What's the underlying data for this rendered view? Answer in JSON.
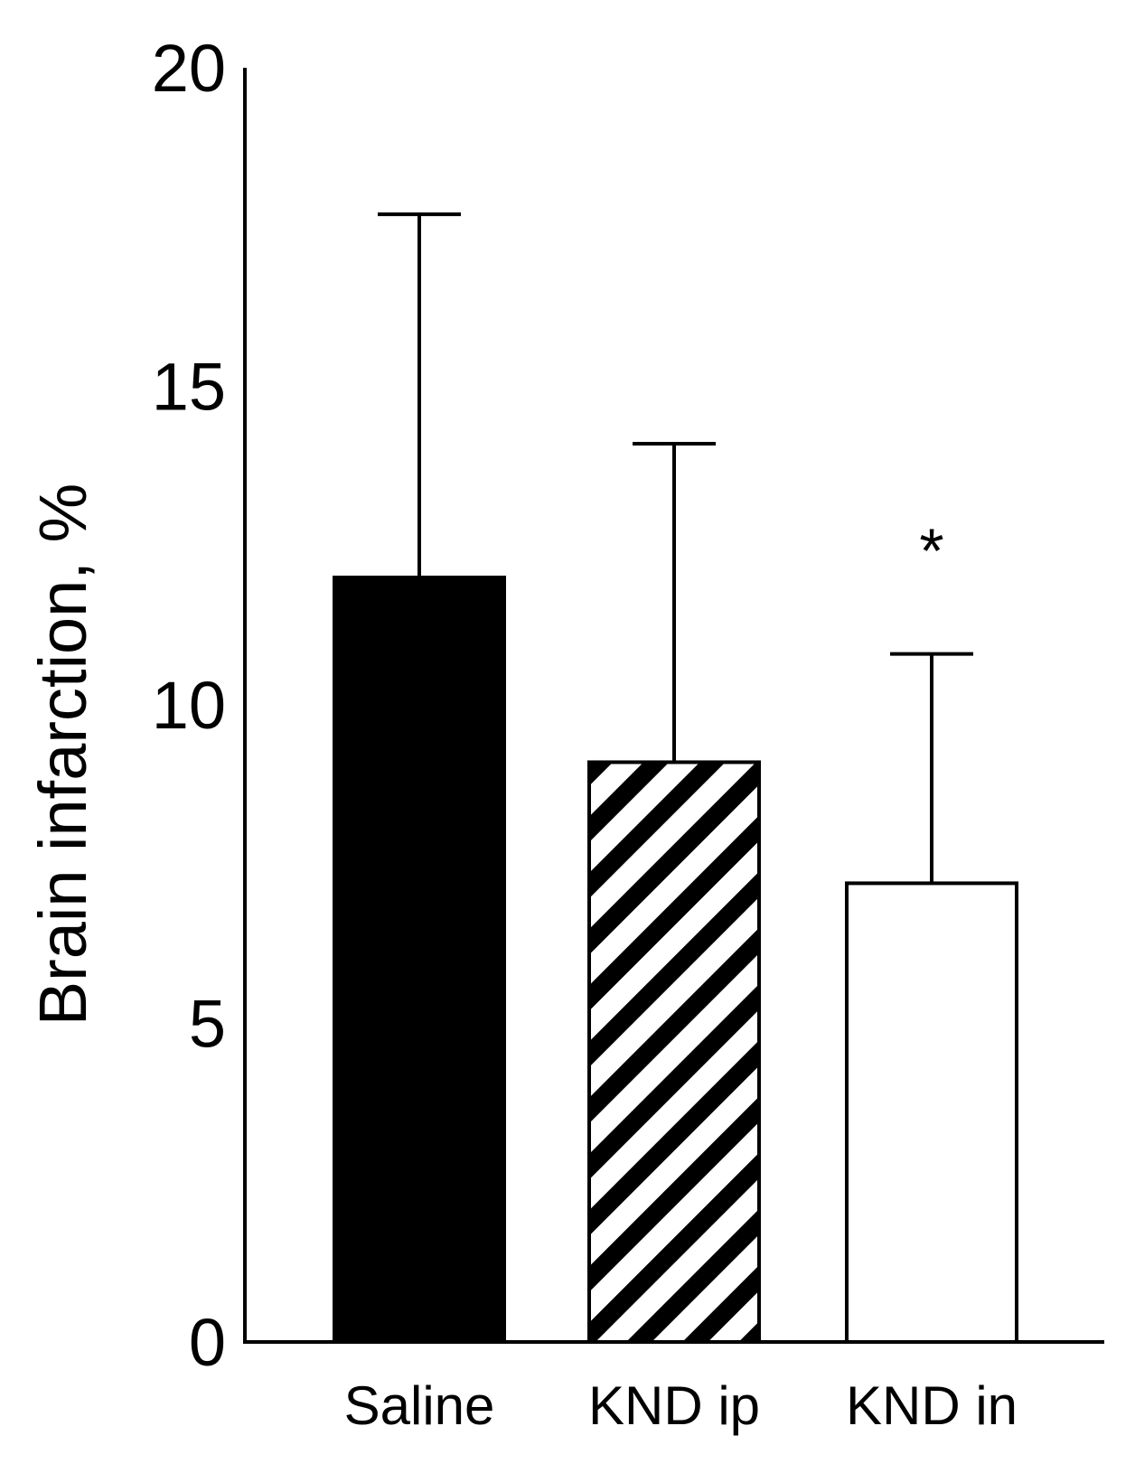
{
  "chart_data": {
    "type": "bar",
    "title": "",
    "xlabel": "",
    "ylabel": "Brain infarction, %",
    "ylim": [
      0,
      20
    ],
    "yticks": [
      0,
      5,
      10,
      15,
      20
    ],
    "grid": false,
    "categories": [
      "Saline",
      "KND ip",
      "KND in"
    ],
    "values": [
      12.0,
      9.1,
      7.2
    ],
    "error_upper": [
      17.7,
      14.1,
      10.8
    ],
    "bar_fills": [
      "solid-black",
      "diagonal-hatch",
      "white"
    ],
    "colors": {
      "axis": "#000000",
      "bar_solid": "#000000",
      "bar_open": "#ffffff"
    },
    "annotations": [
      {
        "category": "KND in",
        "text": "*"
      }
    ]
  }
}
